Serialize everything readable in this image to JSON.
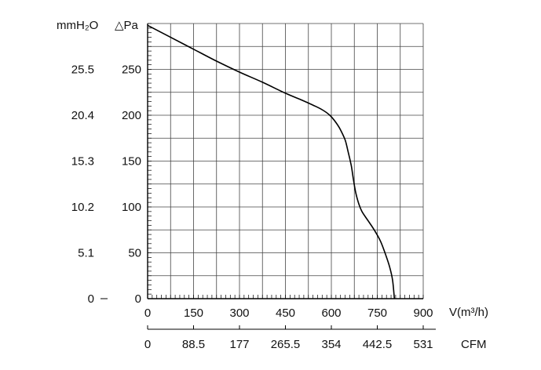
{
  "chart_data": {
    "type": "line",
    "title": "",
    "grid": true,
    "x_axis": {
      "label": "V(m³/h)",
      "range": [
        0,
        900
      ],
      "ticks": [
        "0",
        "150",
        "300",
        "450",
        "600",
        "750",
        "900"
      ]
    },
    "x2_axis": {
      "label": "CFM",
      "ticks": [
        "0",
        "88.5",
        "177",
        "265.5",
        "354",
        "442.5",
        "531"
      ]
    },
    "y_axis": {
      "label": "△Pa",
      "range": [
        0,
        300
      ],
      "ticks": [
        "0",
        "50",
        "100",
        "150",
        "200",
        "250"
      ]
    },
    "y2_axis": {
      "label": "mmH₂O",
      "ticks": [
        "0",
        "5.1",
        "10.2",
        "15.3",
        "20.4",
        "25.5"
      ]
    },
    "series": [
      {
        "color": "#000000",
        "x": [
          0,
          75,
          150,
          225,
          300,
          375,
          450,
          500,
          540,
          570,
          595,
          615,
          630,
          645,
          655,
          665,
          672,
          680,
          690,
          700,
          720,
          740,
          760,
          775,
          790,
          800,
          806
        ],
        "y": [
          298,
          285,
          272,
          259,
          247,
          236,
          224,
          217,
          211,
          206,
          200,
          192,
          184,
          173,
          160,
          145,
          130,
          115,
          103,
          95,
          85,
          75,
          63,
          50,
          35,
          20,
          0
        ]
      }
    ]
  }
}
